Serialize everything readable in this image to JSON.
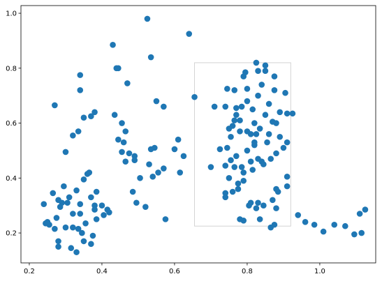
{
  "chart_data": {
    "type": "scatter",
    "color": "#1f77b4",
    "x": [
      0.24,
      0.245,
      0.25,
      0.255,
      0.265,
      0.27,
      0.275,
      0.28,
      0.28,
      0.28,
      0.285,
      0.29,
      0.295,
      0.3,
      0.305,
      0.31,
      0.315,
      0.32,
      0.32,
      0.33,
      0.33,
      0.335,
      0.34,
      0.34,
      0.345,
      0.35,
      0.35,
      0.355,
      0.36,
      0.365,
      0.37,
      0.37,
      0.375,
      0.38,
      0.38,
      0.385,
      0.385,
      0.4,
      0.405,
      0.415,
      0.42,
      0.27,
      0.3,
      0.32,
      0.335,
      0.34,
      0.34,
      0.35,
      0.37,
      0.38,
      0.43,
      0.435,
      0.44,
      0.445,
      0.445,
      0.455,
      0.455,
      0.46,
      0.465,
      0.465,
      0.47,
      0.475,
      0.485,
      0.49,
      0.49,
      0.495,
      0.505,
      0.52,
      0.525,
      0.53,
      0.535,
      0.535,
      0.54,
      0.545,
      0.55,
      0.555,
      0.57,
      0.57,
      0.575,
      0.6,
      0.61,
      0.615,
      0.625,
      0.64,
      0.655,
      0.7,
      0.71,
      0.725,
      0.74,
      0.74,
      0.74,
      0.74,
      0.745,
      0.745,
      0.75,
      0.75,
      0.755,
      0.755,
      0.76,
      0.76,
      0.765,
      0.765,
      0.765,
      0.77,
      0.77,
      0.77,
      0.775,
      0.775,
      0.78,
      0.78,
      0.78,
      0.785,
      0.785,
      0.79,
      0.79,
      0.79,
      0.79,
      0.795,
      0.8,
      0.8,
      0.8,
      0.8,
      0.805,
      0.81,
      0.81,
      0.81,
      0.815,
      0.815,
      0.82,
      0.82,
      0.82,
      0.825,
      0.825,
      0.825,
      0.83,
      0.83,
      0.83,
      0.83,
      0.835,
      0.835,
      0.84,
      0.84,
      0.845,
      0.845,
      0.85,
      0.85,
      0.85,
      0.855,
      0.86,
      0.86,
      0.865,
      0.865,
      0.87,
      0.87,
      0.875,
      0.875,
      0.875,
      0.88,
      0.88,
      0.88,
      0.88,
      0.885,
      0.89,
      0.89,
      0.9,
      0.905,
      0.91,
      0.91,
      0.91,
      0.91,
      0.925,
      0.94,
      0.96,
      0.985,
      1.01,
      1.04,
      1.07,
      1.095,
      1.11,
      1.115,
      1.125
    ],
    "values": [
      0.305,
      0.235,
      0.24,
      0.23,
      0.345,
      0.215,
      0.255,
      0.32,
      0.17,
      0.15,
      0.295,
      0.31,
      0.37,
      0.22,
      0.31,
      0.33,
      0.145,
      0.27,
      0.22,
      0.355,
      0.13,
      0.215,
      0.305,
      0.27,
      0.2,
      0.395,
      0.17,
      0.235,
      0.415,
      0.42,
      0.33,
      0.16,
      0.19,
      0.3,
      0.285,
      0.25,
      0.35,
      0.3,
      0.265,
      0.285,
      0.275,
      0.665,
      0.495,
      0.555,
      0.57,
      0.775,
      0.72,
      0.62,
      0.625,
      0.64,
      0.885,
      0.63,
      0.8,
      0.54,
      0.8,
      0.495,
      0.6,
      0.53,
      0.57,
      0.46,
      0.745,
      0.49,
      0.35,
      0.48,
      0.465,
      0.31,
      0.4,
      0.295,
      0.98,
      0.45,
      0.84,
      0.505,
      0.405,
      0.51,
      0.68,
      0.42,
      0.66,
      0.435,
      0.25,
      0.505,
      0.54,
      0.42,
      0.48,
      0.925,
      0.695,
      0.44,
      0.66,
      0.505,
      0.345,
      0.33,
      0.445,
      0.66,
      0.51,
      0.725,
      0.58,
      0.4,
      0.55,
      0.465,
      0.59,
      0.35,
      0.72,
      0.44,
      0.61,
      0.48,
      0.63,
      0.655,
      0.36,
      0.38,
      0.25,
      0.57,
      0.61,
      0.66,
      0.44,
      0.39,
      0.245,
      0.77,
      0.42,
      0.785,
      0.57,
      0.5,
      0.68,
      0.725,
      0.3,
      0.56,
      0.31,
      0.46,
      0.43,
      0.65,
      0.6,
      0.52,
      0.53,
      0.82,
      0.29,
      0.56,
      0.7,
      0.79,
      0.31,
      0.47,
      0.58,
      0.25,
      0.46,
      0.74,
      0.3,
      0.45,
      0.81,
      0.79,
      0.63,
      0.53,
      0.67,
      0.56,
      0.22,
      0.47,
      0.605,
      0.32,
      0.77,
      0.23,
      0.72,
      0.6,
      0.49,
      0.36,
      0.29,
      0.35,
      0.64,
      0.55,
      0.51,
      0.71,
      0.53,
      0.635,
      0.405,
      0.37,
      0.635,
      0.265,
      0.24,
      0.23,
      0.205,
      0.23,
      0.225,
      0.195,
      0.27,
      0.2,
      0.285
    ],
    "xlim": [
      0.177,
      1.154
    ],
    "ylim": [
      0.091,
      1.028
    ],
    "xticks": [
      0.2,
      0.4,
      0.6,
      0.8,
      {
        "value": 1,
        "label": "1.0"
      }
    ],
    "yticks": [
      0.2,
      0.4,
      0.6,
      0.8,
      {
        "value": 1,
        "label": "1.0"
      }
    ],
    "selection_box": {
      "x": [
        0.655,
        0.92
      ],
      "y": [
        0.225,
        0.82
      ]
    }
  }
}
